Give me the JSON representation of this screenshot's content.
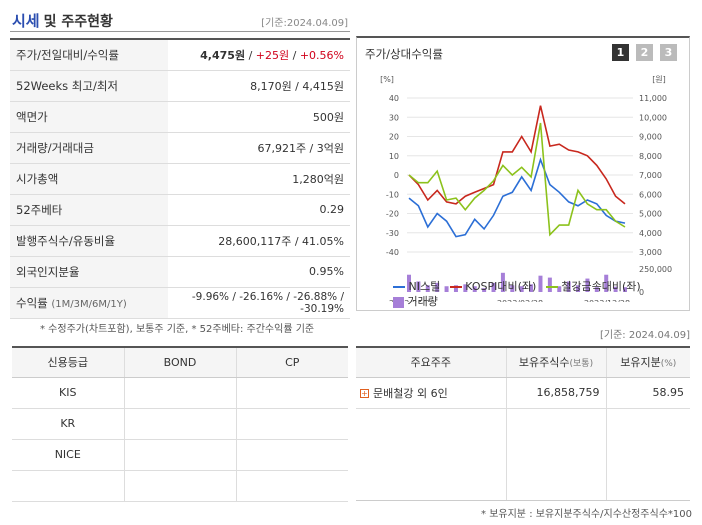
{
  "header": {
    "title": "시세",
    "subtitle": "및 주주현황",
    "date": "[기준:2024.04.09]"
  },
  "info": {
    "rows": [
      {
        "label": "주가/전일대비/수익률",
        "price": "4,475원",
        "sep1": " / ",
        "change": "+25원",
        "sep2": " / ",
        "rate": "+0.56%"
      },
      {
        "label": "52Weeks 최고/최저",
        "value": "8,170원 / 4,415원"
      },
      {
        "label": "액면가",
        "value": "500원"
      },
      {
        "label": "거래량/거래대금",
        "value": "67,921주 / 3억원"
      },
      {
        "label": "시가총액",
        "value": "1,280억원"
      },
      {
        "label": "52주베타",
        "value": "0.29"
      },
      {
        "label": "발행주식수/유동비율",
        "value": "28,600,117주 / 41.05%"
      },
      {
        "label": "외국인지분율",
        "value": "0.95%"
      },
      {
        "label": "수익률",
        "sublabel": "(1M/3M/6M/1Y)",
        "value": "-9.96% / -26.16% / -26.88% / -30.19%"
      }
    ]
  },
  "note1": "* 수정주가(차트포함), 보통주 기준, * 52주베타: 주간수익률 기준",
  "chart_panel": {
    "title": "주가/상대수익률",
    "page_buttons": [
      "1",
      "2",
      "3"
    ],
    "legend": {
      "s1": "NI스틸",
      "s2": "KOSPI대비(좌)",
      "s3": "철강금속대비(좌)",
      "s4": "거래량"
    }
  },
  "chart_data": {
    "type": "line",
    "left_unit": "[%]",
    "right_unit": "[원]",
    "left_ticks": [
      "40",
      "30",
      "20",
      "10",
      "0",
      "-10",
      "-20",
      "-30",
      "-40"
    ],
    "right_ticks": [
      "11,000",
      "10,000",
      "9,000",
      "8,000",
      "7,000",
      "6,000",
      "5,000",
      "4,000",
      "3,000"
    ],
    "volume_ticks": [
      "250,000",
      "0"
    ],
    "x_labels": [
      "2022/04/29",
      "2023/02/28",
      "2023/12/28"
    ],
    "left_range": [
      -40,
      40
    ],
    "right_range": [
      3000,
      11000
    ],
    "series": [
      {
        "name": "NI스틸",
        "axis": "right",
        "color": "#2c6fd6",
        "values": [
          5800,
          5400,
          4300,
          5000,
          4600,
          3800,
          3900,
          4700,
          4200,
          4900,
          5900,
          6100,
          6900,
          6200,
          7800,
          6500,
          6100,
          5600,
          5400,
          5700,
          5500,
          4900,
          4600,
          4500
        ]
      },
      {
        "name": "KOSPI대비(좌)",
        "axis": "left",
        "color": "#c8281e",
        "values": [
          0,
          -5,
          -13,
          -8,
          -14,
          -15,
          -11,
          -9,
          -7,
          -5,
          12,
          12,
          20,
          12,
          36,
          15,
          16,
          13,
          12,
          10,
          5,
          -2,
          -11,
          -15
        ]
      },
      {
        "name": "철강금속대비(좌)",
        "axis": "left",
        "color": "#8cc21c",
        "values": [
          0,
          -4,
          -4,
          2,
          -13,
          -12,
          -18,
          -12,
          -8,
          -3,
          5,
          0,
          4,
          -1,
          27,
          -31,
          -26,
          -26,
          -8,
          -15,
          -18,
          -18,
          -24,
          -27
        ]
      }
    ],
    "volume": [
      180000,
      110000,
      70000,
      95000,
      60000,
      70000,
      80000,
      60000,
      40000,
      95000,
      200000,
      70000,
      60000,
      80000,
      170000,
      150000,
      60000,
      110000,
      70000,
      140000,
      50000,
      180000,
      55000,
      50000
    ]
  },
  "date2": "[기준: 2024.04.09]",
  "credit": {
    "headers": [
      "신용등급",
      "BOND",
      "CP"
    ],
    "rows": [
      [
        "KIS",
        "",
        ""
      ],
      [
        "KR",
        "",
        ""
      ],
      [
        "NICE",
        "",
        ""
      ],
      [
        "",
        "",
        ""
      ]
    ]
  },
  "holders": {
    "headers": [
      "주요주주",
      "보유주식수",
      "(보통)",
      "보유지분",
      "(%)"
    ],
    "rows": [
      {
        "name": "문배철강 외 6인",
        "shares": "16,858,759",
        "pct": "58.95"
      }
    ],
    "icon": "+"
  },
  "note2": "* 보유지분 : 보유지분주식수/지수산정주식수*100"
}
